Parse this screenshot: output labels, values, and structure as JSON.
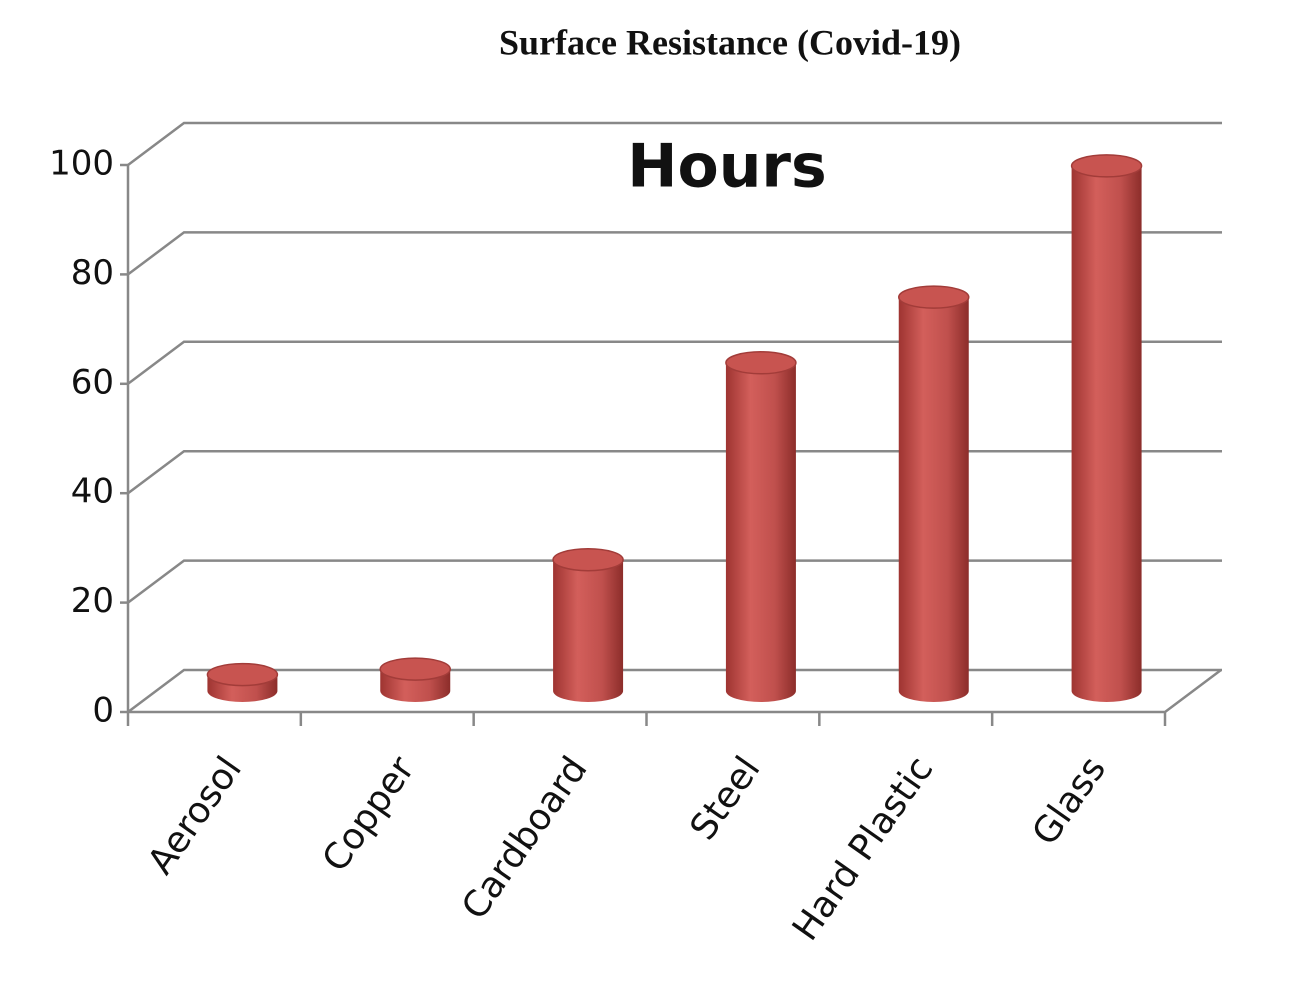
{
  "chart_data": {
    "type": "bar3d",
    "title": "Surface Resistance (Covid-19)",
    "subtitle": "Hours",
    "categories": [
      "Aerosol",
      "Copper",
      "Cardboard",
      "Steel",
      "Hard Plastic",
      "Glass"
    ],
    "values": [
      3,
      4,
      24,
      60,
      72,
      96
    ],
    "color": "#c0504d",
    "ylim": [
      0,
      100
    ],
    "yticks": [
      0,
      20,
      40,
      60,
      80,
      100
    ],
    "grid": true
  }
}
